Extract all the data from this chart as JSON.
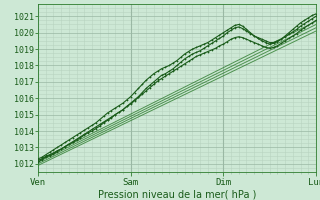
{
  "title": "",
  "xlabel": "Pression niveau de la mer( hPa )",
  "ylabel": "",
  "bg_color": "#cde8d5",
  "grid_color_minor": "#b8d4c0",
  "grid_color_major": "#9ab8a4",
  "line_color_dark": "#1a5c1a",
  "line_color_mid": "#2e7d2e",
  "xlim": [
    0,
    72
  ],
  "ylim": [
    1011.5,
    1021.5
  ],
  "yticks": [
    1012,
    1013,
    1014,
    1015,
    1016,
    1017,
    1018,
    1019,
    1020,
    1021
  ],
  "xtick_positions": [
    0,
    24,
    48,
    72
  ],
  "xtick_labels": [
    "Ven",
    "Sam",
    "Dim",
    "Lun"
  ],
  "smooth_lines": [
    {
      "x": [
        0,
        72
      ],
      "y": [
        1012.1,
        1020.5
      ]
    },
    {
      "x": [
        0,
        72
      ],
      "y": [
        1012.2,
        1020.7
      ]
    },
    {
      "x": [
        0,
        72
      ],
      "y": [
        1012.0,
        1020.3
      ]
    },
    {
      "x": [
        0,
        72
      ],
      "y": [
        1011.9,
        1020.1
      ]
    }
  ],
  "jagged_lines": [
    {
      "x": [
        0,
        1,
        2,
        3,
        4,
        5,
        6,
        7,
        8,
        9,
        10,
        11,
        12,
        13,
        14,
        15,
        16,
        17,
        18,
        19,
        20,
        21,
        22,
        23,
        24,
        25,
        26,
        27,
        28,
        29,
        30,
        31,
        32,
        33,
        34,
        35,
        36,
        37,
        38,
        39,
        40,
        41,
        42,
        43,
        44,
        45,
        46,
        47,
        48,
        49,
        50,
        51,
        52,
        53,
        54,
        55,
        56,
        57,
        58,
        59,
        60,
        61,
        62,
        63,
        64,
        65,
        66,
        67,
        68,
        69,
        70,
        71,
        72
      ],
      "y": [
        1012.2,
        1012.3,
        1012.45,
        1012.55,
        1012.65,
        1012.8,
        1012.9,
        1013.05,
        1013.2,
        1013.3,
        1013.45,
        1013.6,
        1013.75,
        1013.9,
        1014.0,
        1014.15,
        1014.3,
        1014.5,
        1014.65,
        1014.8,
        1015.0,
        1015.15,
        1015.3,
        1015.5,
        1015.7,
        1015.9,
        1016.1,
        1016.35,
        1016.6,
        1016.8,
        1017.0,
        1017.2,
        1017.4,
        1017.5,
        1017.65,
        1017.8,
        1018.0,
        1018.2,
        1018.4,
        1018.55,
        1018.7,
        1018.8,
        1018.9,
        1019.05,
        1019.2,
        1019.35,
        1019.5,
        1019.65,
        1019.8,
        1020.0,
        1020.15,
        1020.3,
        1020.35,
        1020.25,
        1020.1,
        1019.95,
        1019.8,
        1019.7,
        1019.6,
        1019.5,
        1019.4,
        1019.4,
        1019.5,
        1019.6,
        1019.75,
        1019.9,
        1020.05,
        1020.2,
        1020.4,
        1020.55,
        1020.7,
        1020.85,
        1021.0
      ]
    },
    {
      "x": [
        0,
        1,
        2,
        3,
        4,
        5,
        6,
        7,
        8,
        9,
        10,
        11,
        12,
        13,
        14,
        15,
        16,
        17,
        18,
        19,
        20,
        21,
        22,
        23,
        24,
        25,
        26,
        27,
        28,
        29,
        30,
        31,
        32,
        33,
        34,
        35,
        36,
        37,
        38,
        39,
        40,
        41,
        42,
        43,
        44,
        45,
        46,
        47,
        48,
        49,
        50,
        51,
        52,
        53,
        54,
        55,
        56,
        57,
        58,
        59,
        60,
        61,
        62,
        63,
        64,
        65,
        66,
        67,
        68,
        69,
        70,
        71,
        72
      ],
      "y": [
        1012.3,
        1012.4,
        1012.55,
        1012.7,
        1012.85,
        1013.0,
        1013.15,
        1013.3,
        1013.45,
        1013.6,
        1013.75,
        1013.9,
        1014.05,
        1014.2,
        1014.35,
        1014.5,
        1014.7,
        1014.9,
        1015.1,
        1015.25,
        1015.4,
        1015.55,
        1015.7,
        1015.9,
        1016.1,
        1016.35,
        1016.6,
        1016.85,
        1017.1,
        1017.3,
        1017.5,
        1017.65,
        1017.8,
        1017.9,
        1018.0,
        1018.15,
        1018.3,
        1018.5,
        1018.7,
        1018.85,
        1019.0,
        1019.1,
        1019.2,
        1019.3,
        1019.4,
        1019.55,
        1019.7,
        1019.85,
        1020.0,
        1020.15,
        1020.3,
        1020.45,
        1020.5,
        1020.4,
        1020.2,
        1020.0,
        1019.8,
        1019.65,
        1019.5,
        1019.4,
        1019.3,
        1019.35,
        1019.45,
        1019.6,
        1019.8,
        1020.0,
        1020.2,
        1020.4,
        1020.6,
        1020.75,
        1020.9,
        1021.05,
        1021.15
      ]
    },
    {
      "x": [
        0,
        1,
        2,
        3,
        4,
        5,
        6,
        7,
        8,
        9,
        10,
        11,
        12,
        13,
        14,
        15,
        16,
        17,
        18,
        19,
        20,
        21,
        22,
        23,
        24,
        25,
        26,
        27,
        28,
        29,
        30,
        31,
        32,
        33,
        34,
        35,
        36,
        37,
        38,
        39,
        40,
        41,
        42,
        43,
        44,
        45,
        46,
        47,
        48,
        49,
        50,
        51,
        52,
        53,
        54,
        55,
        56,
        57,
        58,
        59,
        60,
        61,
        62,
        63,
        64,
        65,
        66,
        67,
        68,
        69,
        70,
        71,
        72
      ],
      "y": [
        1012.1,
        1012.25,
        1012.4,
        1012.5,
        1012.6,
        1012.75,
        1012.9,
        1013.05,
        1013.2,
        1013.35,
        1013.5,
        1013.65,
        1013.8,
        1013.95,
        1014.1,
        1014.25,
        1014.4,
        1014.55,
        1014.7,
        1014.85,
        1015.0,
        1015.15,
        1015.3,
        1015.5,
        1015.65,
        1015.85,
        1016.05,
        1016.25,
        1016.45,
        1016.65,
        1016.85,
        1017.05,
        1017.2,
        1017.35,
        1017.5,
        1017.65,
        1017.8,
        1017.95,
        1018.1,
        1018.25,
        1018.4,
        1018.55,
        1018.65,
        1018.75,
        1018.85,
        1018.95,
        1019.05,
        1019.2,
        1019.3,
        1019.45,
        1019.6,
        1019.7,
        1019.75,
        1019.7,
        1019.6,
        1019.5,
        1019.4,
        1019.3,
        1019.2,
        1019.1,
        1019.05,
        1019.1,
        1019.2,
        1019.35,
        1019.5,
        1019.65,
        1019.8,
        1019.95,
        1020.15,
        1020.3,
        1020.45,
        1020.6,
        1020.75
      ]
    }
  ]
}
